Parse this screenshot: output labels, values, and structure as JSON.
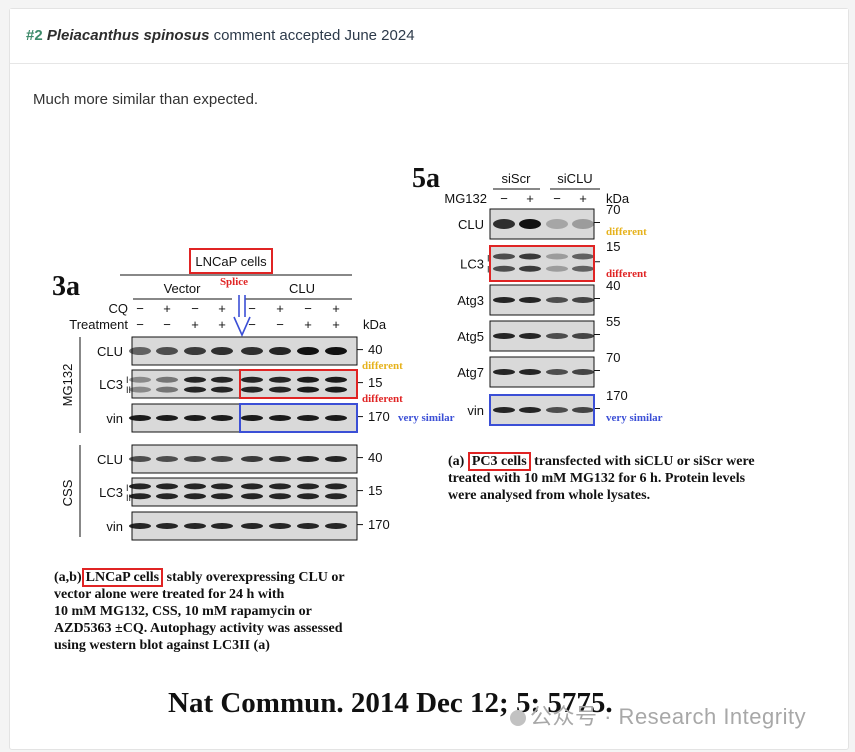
{
  "header": {
    "number": "#2",
    "species": "Pleiacanthus spinosus",
    "status": "comment accepted June 2024"
  },
  "comment": "Much more similar than expected.",
  "figure": {
    "panel_3a": {
      "label": "3a",
      "cell_line": "LNCaP cells",
      "splice": "Splice",
      "groups": [
        "Vector",
        "CLU"
      ],
      "row_labels": [
        "CQ",
        "Treatment"
      ],
      "cq_signs": [
        "−",
        "+",
        "−",
        "+",
        "−",
        "+",
        "−",
        "+"
      ],
      "treatment_signs": [
        "−",
        "−",
        "+",
        "+",
        "−",
        "−",
        "+",
        "+"
      ],
      "kda": "kDa",
      "section_mg132": "MG132",
      "section_css": "CSS",
      "rows_mg132": [
        {
          "name": "CLU",
          "kda": "40",
          "note": "different"
        },
        {
          "name": "LC3",
          "sub": "I\nII",
          "kda": "15",
          "note": "different"
        },
        {
          "name": "vin",
          "kda": "170",
          "note": "very similar"
        }
      ],
      "rows_css": [
        {
          "name": "CLU",
          "kda": "40"
        },
        {
          "name": "LC3",
          "sub": "I\nII",
          "kda": "15"
        },
        {
          "name": "vin",
          "kda": "170"
        }
      ],
      "caption_highlight": "LNCaP cells",
      "caption_prefix": "(a,b)",
      "caption_lines": [
        " stably overexpressing CLU or",
        "vector alone were treated for 24 h with",
        "10 mM MG132, CSS, 10 mM rapamycin or",
        "AZD5363 ±CQ. Autophagy activity was assessed",
        "using western blot against LC3II (a)"
      ]
    },
    "panel_5a": {
      "label": "5a",
      "groups": [
        "siScr",
        "siCLU"
      ],
      "mg132_label": "MG132",
      "mg132_signs": [
        "−",
        "+",
        "−",
        "+"
      ],
      "kda": "kDa",
      "rows": [
        {
          "name": "CLU",
          "kda": "70",
          "note": "different"
        },
        {
          "name": "LC3",
          "kda": "15",
          "note": "different"
        },
        {
          "name": "Atg3",
          "kda": "40"
        },
        {
          "name": "Atg5",
          "kda": "55"
        },
        {
          "name": "Atg7",
          "kda": "70"
        },
        {
          "name": "vin",
          "kda": "170",
          "note": "very similar"
        }
      ],
      "caption_prefix": "(a)",
      "caption_highlight": "PC3 cells",
      "caption_lines": [
        " transfected with siCLU or siScr were",
        "treated with 10 mM MG132 for 6 h. Protein levels",
        "were analysed from whole lysates."
      ]
    },
    "citation": "Nat Commun. 2014 Dec 12; 5: 5775.",
    "watermark": "公众号 · Research Integrity",
    "colors": {
      "highlight_red": "#e02424",
      "box_blue": "#3b4fd6",
      "note_yellow": "#e6b21c",
      "note_red": "#e02424",
      "note_blue": "#3b4fd6",
      "accent_green": "#3d8a6a"
    }
  }
}
